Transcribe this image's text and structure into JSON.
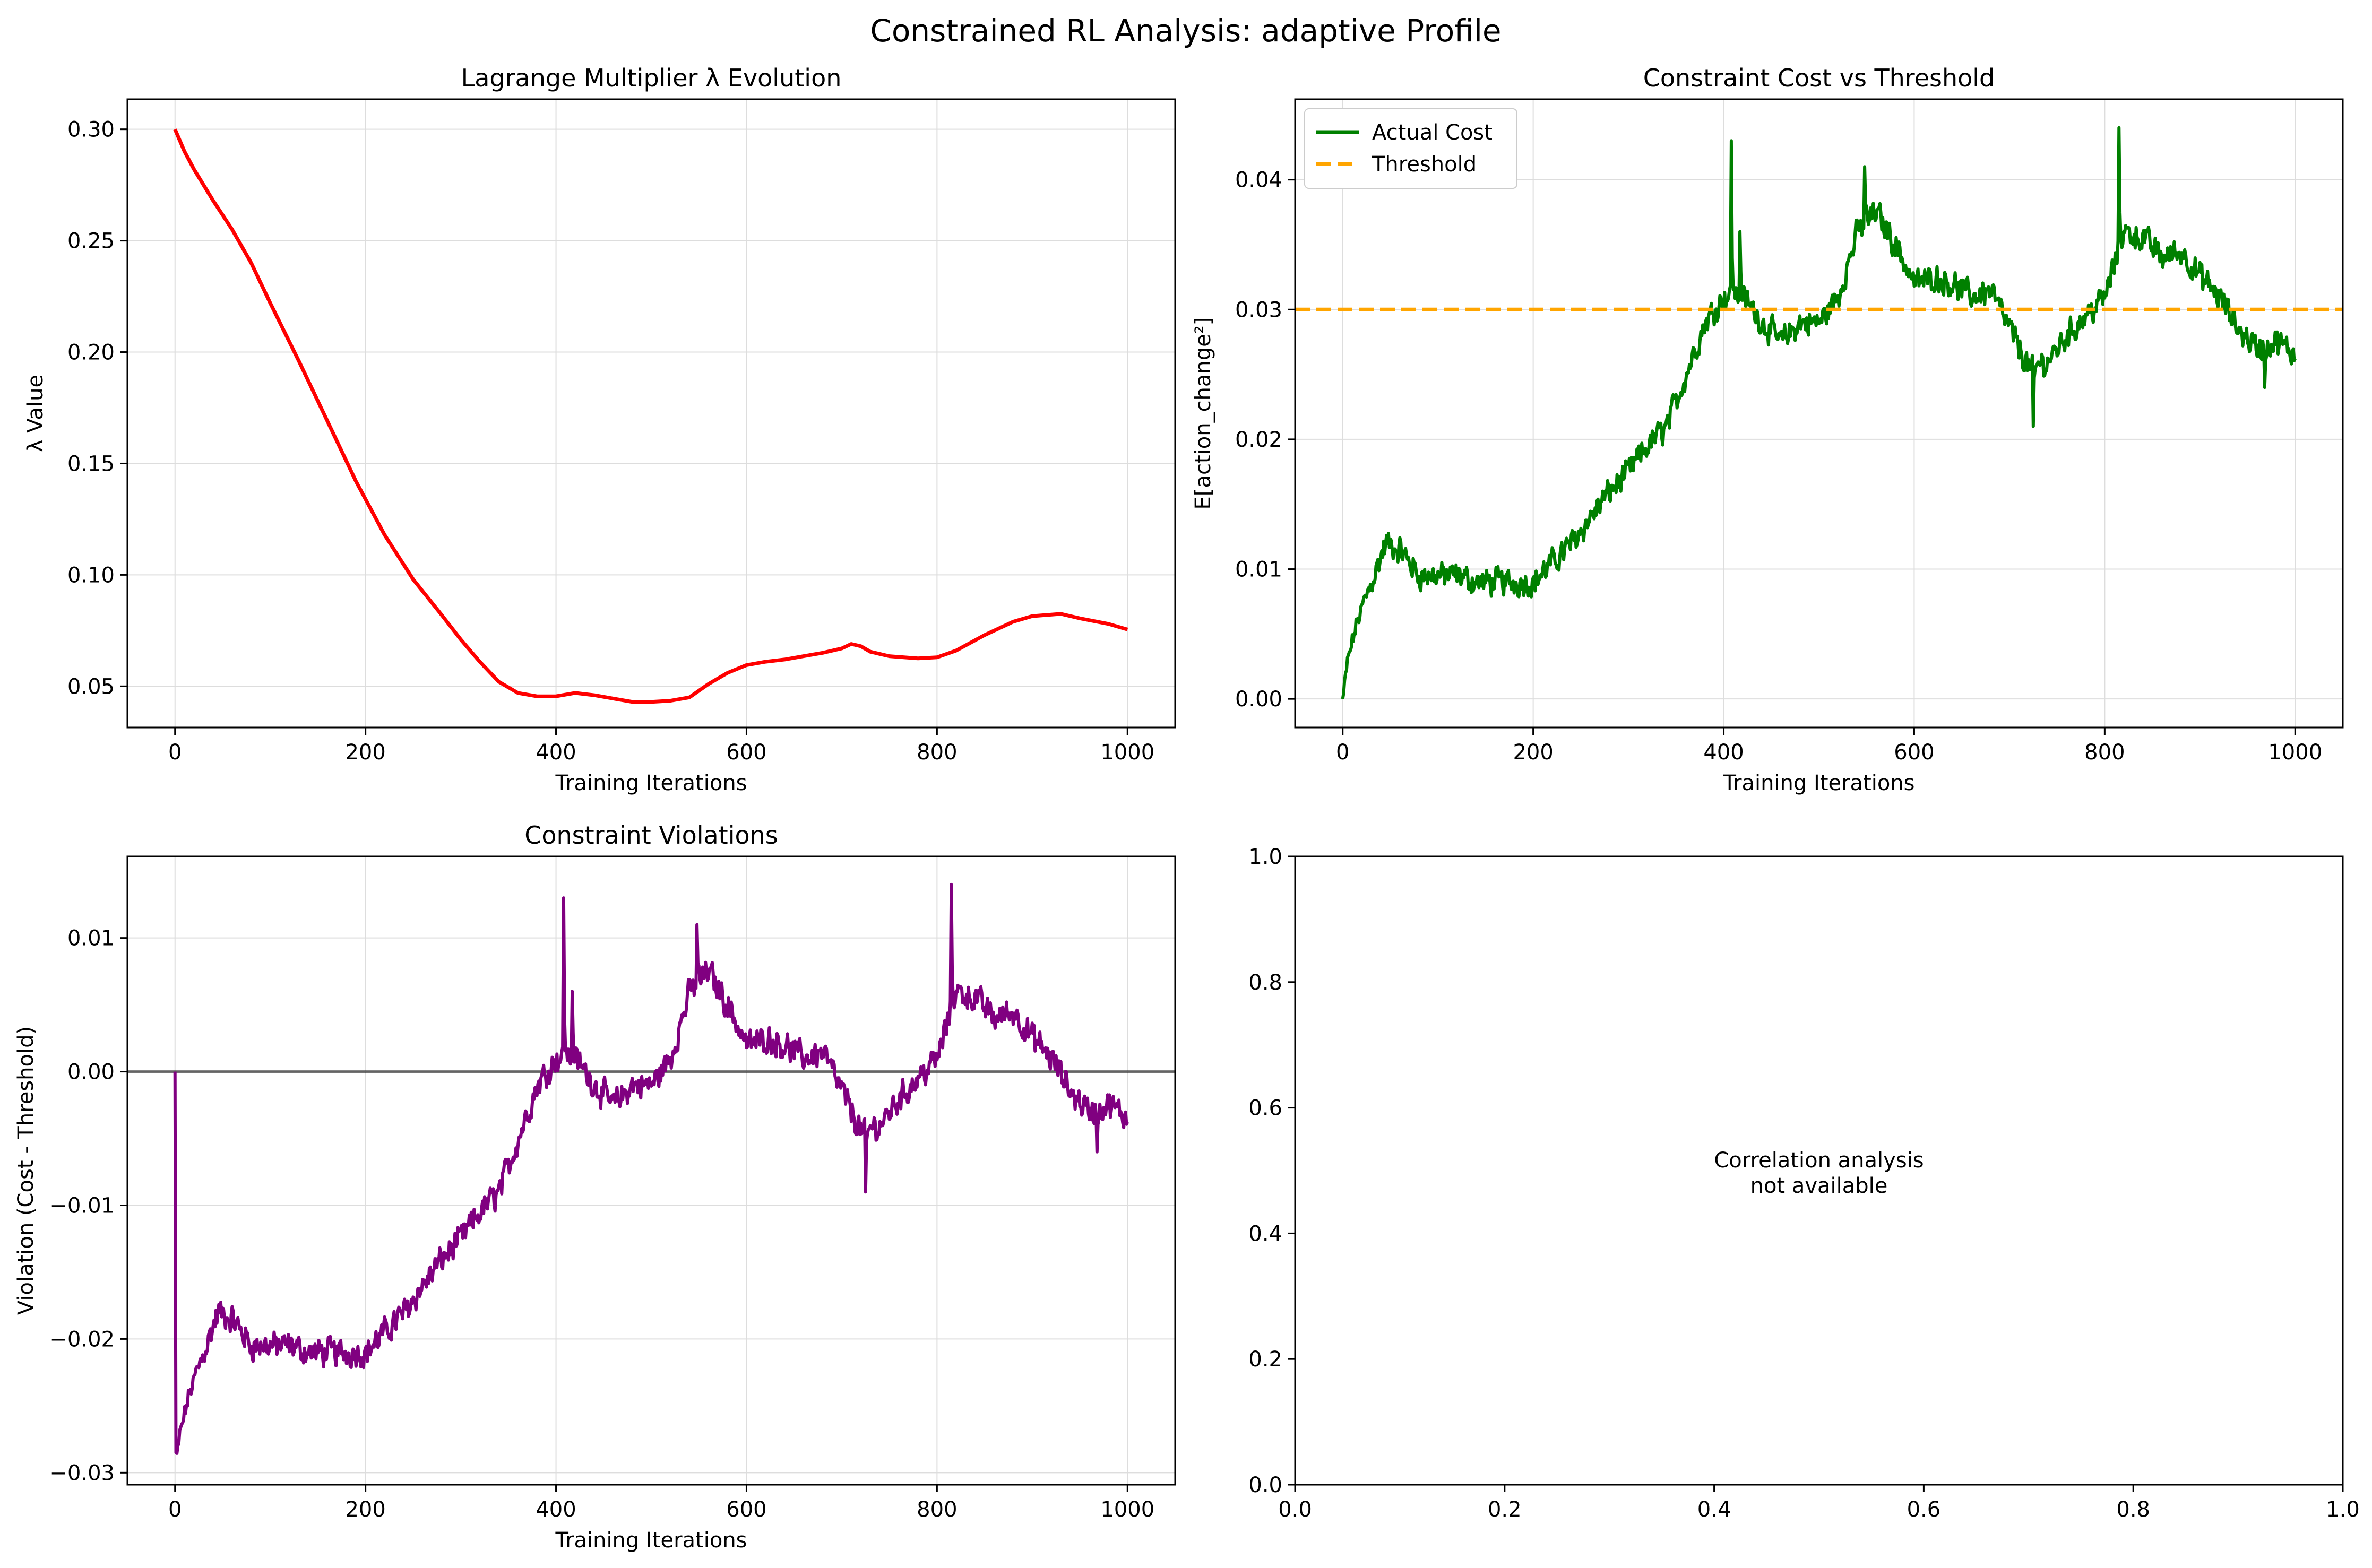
{
  "figure_title": "Constrained RL Analysis: adaptive Profile",
  "colors": {
    "lambda": "#ff0000",
    "cost": "#008000",
    "threshold": "#ffa500",
    "violation": "#800080",
    "zero_line": "#000000",
    "grid": "#dddddd"
  },
  "chart_data": [
    {
      "id": "lambda",
      "type": "line",
      "title": "Lagrange Multiplier λ Evolution",
      "xlabel": "Training Iterations",
      "ylabel": "λ Value",
      "xlim": [
        -50,
        1050
      ],
      "ylim": [
        0.0315,
        0.3135
      ],
      "xticks": [
        0,
        200,
        400,
        600,
        800,
        1000
      ],
      "yticks": [
        0.05,
        0.1,
        0.15,
        0.2,
        0.25,
        0.3
      ],
      "ytick_labels": [
        "0.05",
        "0.10",
        "0.15",
        "0.20",
        "0.25",
        "0.30"
      ],
      "grid": true,
      "series": [
        {
          "color": "#ff0000",
          "x": [
            0,
            10,
            20,
            40,
            60,
            80,
            100,
            130,
            160,
            190,
            220,
            250,
            280,
            300,
            320,
            340,
            360,
            380,
            400,
            420,
            440,
            460,
            480,
            500,
            520,
            540,
            560,
            580,
            600,
            620,
            640,
            660,
            680,
            700,
            710,
            720,
            730,
            750,
            780,
            800,
            820,
            850,
            880,
            900,
            930,
            950,
            980,
            1000
          ],
          "y": [
            0.3,
            0.29,
            0.282,
            0.268,
            0.255,
            0.24,
            0.222,
            0.196,
            0.169,
            0.142,
            0.118,
            0.098,
            0.082,
            0.071,
            0.061,
            0.052,
            0.047,
            0.0455,
            0.0455,
            0.047,
            0.046,
            0.0445,
            0.043,
            0.043,
            0.0435,
            0.045,
            0.051,
            0.056,
            0.0595,
            0.061,
            0.062,
            0.0635,
            0.065,
            0.067,
            0.069,
            0.068,
            0.0655,
            0.0635,
            0.0625,
            0.063,
            0.066,
            0.073,
            0.079,
            0.0815,
            0.0825,
            0.0805,
            0.078,
            0.0755
          ]
        }
      ]
    },
    {
      "id": "cost",
      "type": "line",
      "title": "Constraint Cost vs Threshold",
      "xlabel": "Training Iterations",
      "ylabel": "E[action_change²]",
      "xlim": [
        -50,
        1050
      ],
      "ylim": [
        -0.0022,
        0.0462
      ],
      "xticks": [
        0,
        200,
        400,
        600,
        800,
        1000
      ],
      "yticks": [
        0.0,
        0.01,
        0.02,
        0.03,
        0.04
      ],
      "ytick_labels": [
        "0.00",
        "0.01",
        "0.02",
        "0.03",
        "0.04"
      ],
      "grid": true,
      "legend": "top-left",
      "threshold": 0.03,
      "series": [
        {
          "name": "Actual Cost",
          "color": "#008000",
          "style": "solid"
        },
        {
          "name": "Threshold",
          "color": "#ffa500",
          "style": "dashed"
        }
      ],
      "cost_trend": {
        "x": [
          0,
          5,
          15,
          30,
          45,
          60,
          80,
          100,
          120,
          140,
          160,
          180,
          200,
          220,
          240,
          260,
          280,
          300,
          320,
          340,
          360,
          380,
          400,
          420,
          440,
          460,
          480,
          500,
          520,
          540,
          560,
          580,
          600,
          620,
          640,
          660,
          680,
          700,
          720,
          740,
          760,
          780,
          800,
          820,
          840,
          860,
          880,
          900,
          920,
          940,
          960,
          980,
          1000
        ],
        "y": [
          0.0,
          0.003,
          0.006,
          0.009,
          0.012,
          0.0115,
          0.0095,
          0.0095,
          0.0095,
          0.009,
          0.009,
          0.009,
          0.009,
          0.0105,
          0.012,
          0.014,
          0.016,
          0.0175,
          0.0195,
          0.021,
          0.025,
          0.029,
          0.031,
          0.031,
          0.029,
          0.0275,
          0.029,
          0.029,
          0.031,
          0.036,
          0.0375,
          0.035,
          0.032,
          0.0325,
          0.032,
          0.031,
          0.0315,
          0.0285,
          0.0255,
          0.026,
          0.028,
          0.0295,
          0.031,
          0.036,
          0.0355,
          0.034,
          0.0345,
          0.0325,
          0.031,
          0.0285,
          0.027,
          0.0275,
          0.0265
        ]
      },
      "noise_amplitude": 0.0012,
      "spikes": [
        [
          408,
          0.043
        ],
        [
          417,
          0.036
        ],
        [
          548,
          0.041
        ],
        [
          725,
          0.021
        ],
        [
          815,
          0.044
        ],
        [
          968,
          0.024
        ]
      ]
    },
    {
      "id": "violation",
      "type": "line",
      "title": "Constraint Violations",
      "xlabel": "Training Iterations",
      "ylabel": "Violation (Cost - Threshold)",
      "xlim": [
        -50,
        1050
      ],
      "ylim": [
        -0.0309,
        0.0161
      ],
      "xticks": [
        0,
        200,
        400,
        600,
        800,
        1000
      ],
      "yticks": [
        -0.03,
        -0.02,
        -0.01,
        0.0,
        0.01
      ],
      "ytick_labels": [
        "−0.03",
        "−0.02",
        "−0.01",
        "0.00",
        "0.01"
      ],
      "grid": true,
      "zero_line": 0,
      "series": [
        {
          "color": "#800080",
          "derived_from": "cost",
          "offset": -0.03
        }
      ]
    },
    {
      "id": "empty",
      "type": "scatter",
      "title": "",
      "xlim": [
        0,
        1
      ],
      "ylim": [
        0,
        1
      ],
      "xticks": [
        0,
        0.2,
        0.4,
        0.6,
        0.8,
        1.0
      ],
      "yticks": [
        0,
        0.2,
        0.4,
        0.6,
        0.8,
        1.0
      ],
      "xtick_labels": [
        "0.0",
        "0.2",
        "0.4",
        "0.6",
        "0.8",
        "1.0"
      ],
      "ytick_labels": [
        "0.0",
        "0.2",
        "0.4",
        "0.6",
        "0.8",
        "1.0"
      ],
      "grid": false,
      "annotation": [
        "Correlation analysis",
        "not available"
      ]
    }
  ]
}
